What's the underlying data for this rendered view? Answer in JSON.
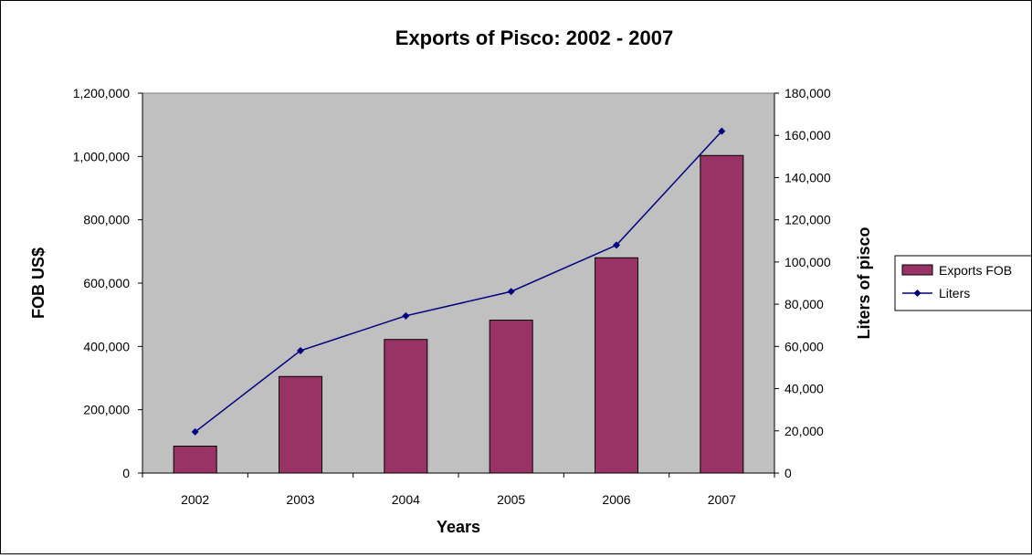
{
  "chart_data": {
    "type": "bar",
    "title": "Exports of Pisco: 2002 - 2007",
    "xlabel": "Years",
    "ylabel": "FOB US$",
    "y2label": "Liters of pisco",
    "categories": [
      "2002",
      "2003",
      "2004",
      "2005",
      "2006",
      "2007"
    ],
    "series": [
      {
        "name": "Exports FOB",
        "type": "bar",
        "axis": "left",
        "color": "#993366",
        "values": [
          85000,
          305000,
          422000,
          483000,
          680000,
          1003000
        ]
      },
      {
        "name": "Liters",
        "type": "line",
        "axis": "right",
        "color": "#000080",
        "marker": "diamond",
        "values": [
          19500,
          58000,
          74500,
          86000,
          108000,
          162000
        ]
      }
    ],
    "ylim": [
      0,
      1200000
    ],
    "y2lim": [
      0,
      180000
    ],
    "yticks": [
      "0",
      "200,000",
      "400,000",
      "600,000",
      "800,000",
      "1,000,000",
      "1,200,000"
    ],
    "y2ticks": [
      "0",
      "20,000",
      "40,000",
      "60,000",
      "80,000",
      "100,000",
      "120,000",
      "140,000",
      "160,000",
      "180,000"
    ],
    "plot_background": "#c0c0c0",
    "grid": false,
    "legend_position": "right"
  }
}
